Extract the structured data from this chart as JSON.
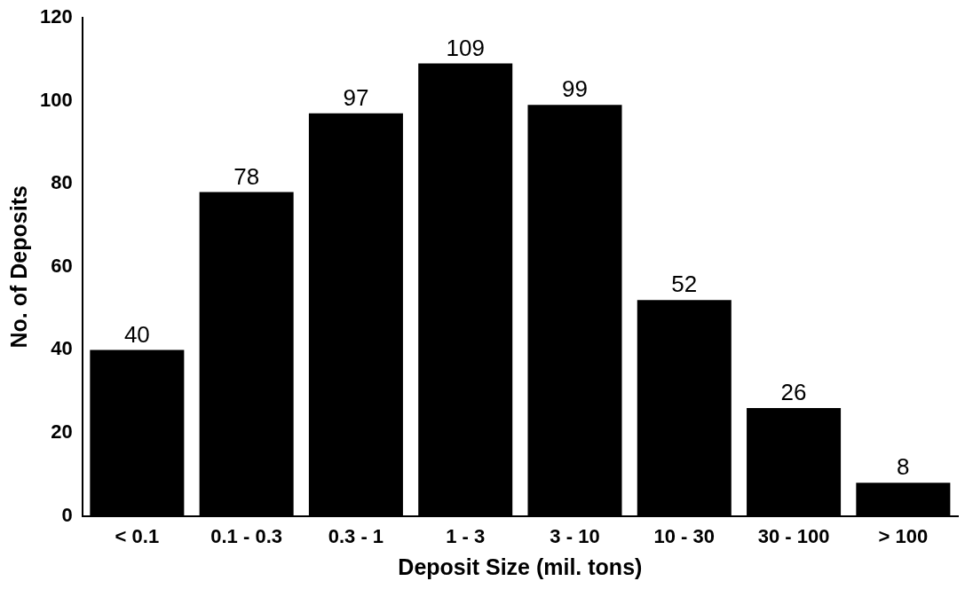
{
  "chart_data": {
    "type": "bar",
    "xlabel": "Deposit Size (mil. tons)",
    "ylabel": "No. of Deposits",
    "categories": [
      "< 0.1",
      "0.1 - 0.3",
      "0.3 - 1",
      "1 - 3",
      "3 - 10",
      "10 - 30",
      "30 - 100",
      "> 100"
    ],
    "values": [
      40,
      78,
      97,
      109,
      99,
      52,
      26,
      8
    ],
    "color": "#000000",
    "ylim": [
      0,
      120
    ],
    "yticks": [
      0,
      20,
      40,
      60,
      80,
      100,
      120
    ],
    "data_labels": true,
    "grid": false,
    "legend": false
  }
}
